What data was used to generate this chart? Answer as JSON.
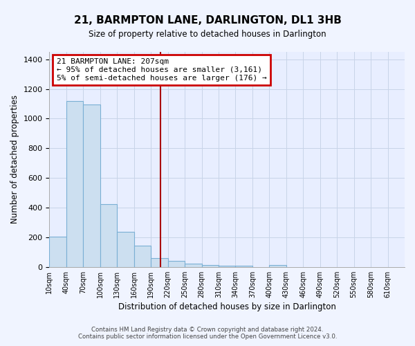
{
  "title": "21, BARMPTON LANE, DARLINGTON, DL1 3HB",
  "subtitle": "Size of property relative to detached houses in Darlington",
  "xlabel": "Distribution of detached houses by size in Darlington",
  "ylabel": "Number of detached properties",
  "bin_labels": [
    "10sqm",
    "40sqm",
    "70sqm",
    "100sqm",
    "130sqm",
    "160sqm",
    "190sqm",
    "220sqm",
    "250sqm",
    "280sqm",
    "310sqm",
    "340sqm",
    "370sqm",
    "400sqm",
    "430sqm",
    "460sqm",
    "490sqm",
    "520sqm",
    "550sqm",
    "580sqm",
    "610sqm"
  ],
  "bar_values": [
    205,
    1120,
    1095,
    425,
    235,
    145,
    60,
    42,
    22,
    13,
    10,
    9,
    0,
    15,
    0,
    0,
    0,
    0,
    0,
    0,
    0
  ],
  "bar_color": "#ccdff0",
  "bar_edge_color": "#7aafd4",
  "vline_color": "#aa0000",
  "property_size_sqm": 207,
  "annotation_title": "21 BARMPTON LANE: 207sqm",
  "annotation_line1": "← 95% of detached houses are smaller (3,161)",
  "annotation_line2": "5% of semi-detached houses are larger (176) →",
  "ylim": [
    0,
    1450
  ],
  "yticks": [
    0,
    200,
    400,
    600,
    800,
    1000,
    1200,
    1400
  ],
  "footnote1": "Contains HM Land Registry data © Crown copyright and database right 2024.",
  "footnote2": "Contains public sector information licensed under the Open Government Licence v3.0.",
  "background_color": "#f0f4ff",
  "plot_bg_color": "#e8eeff",
  "annotation_box_color": "#ffffff",
  "annotation_box_edge": "#cc0000",
  "grid_color": "#c8d4e8"
}
